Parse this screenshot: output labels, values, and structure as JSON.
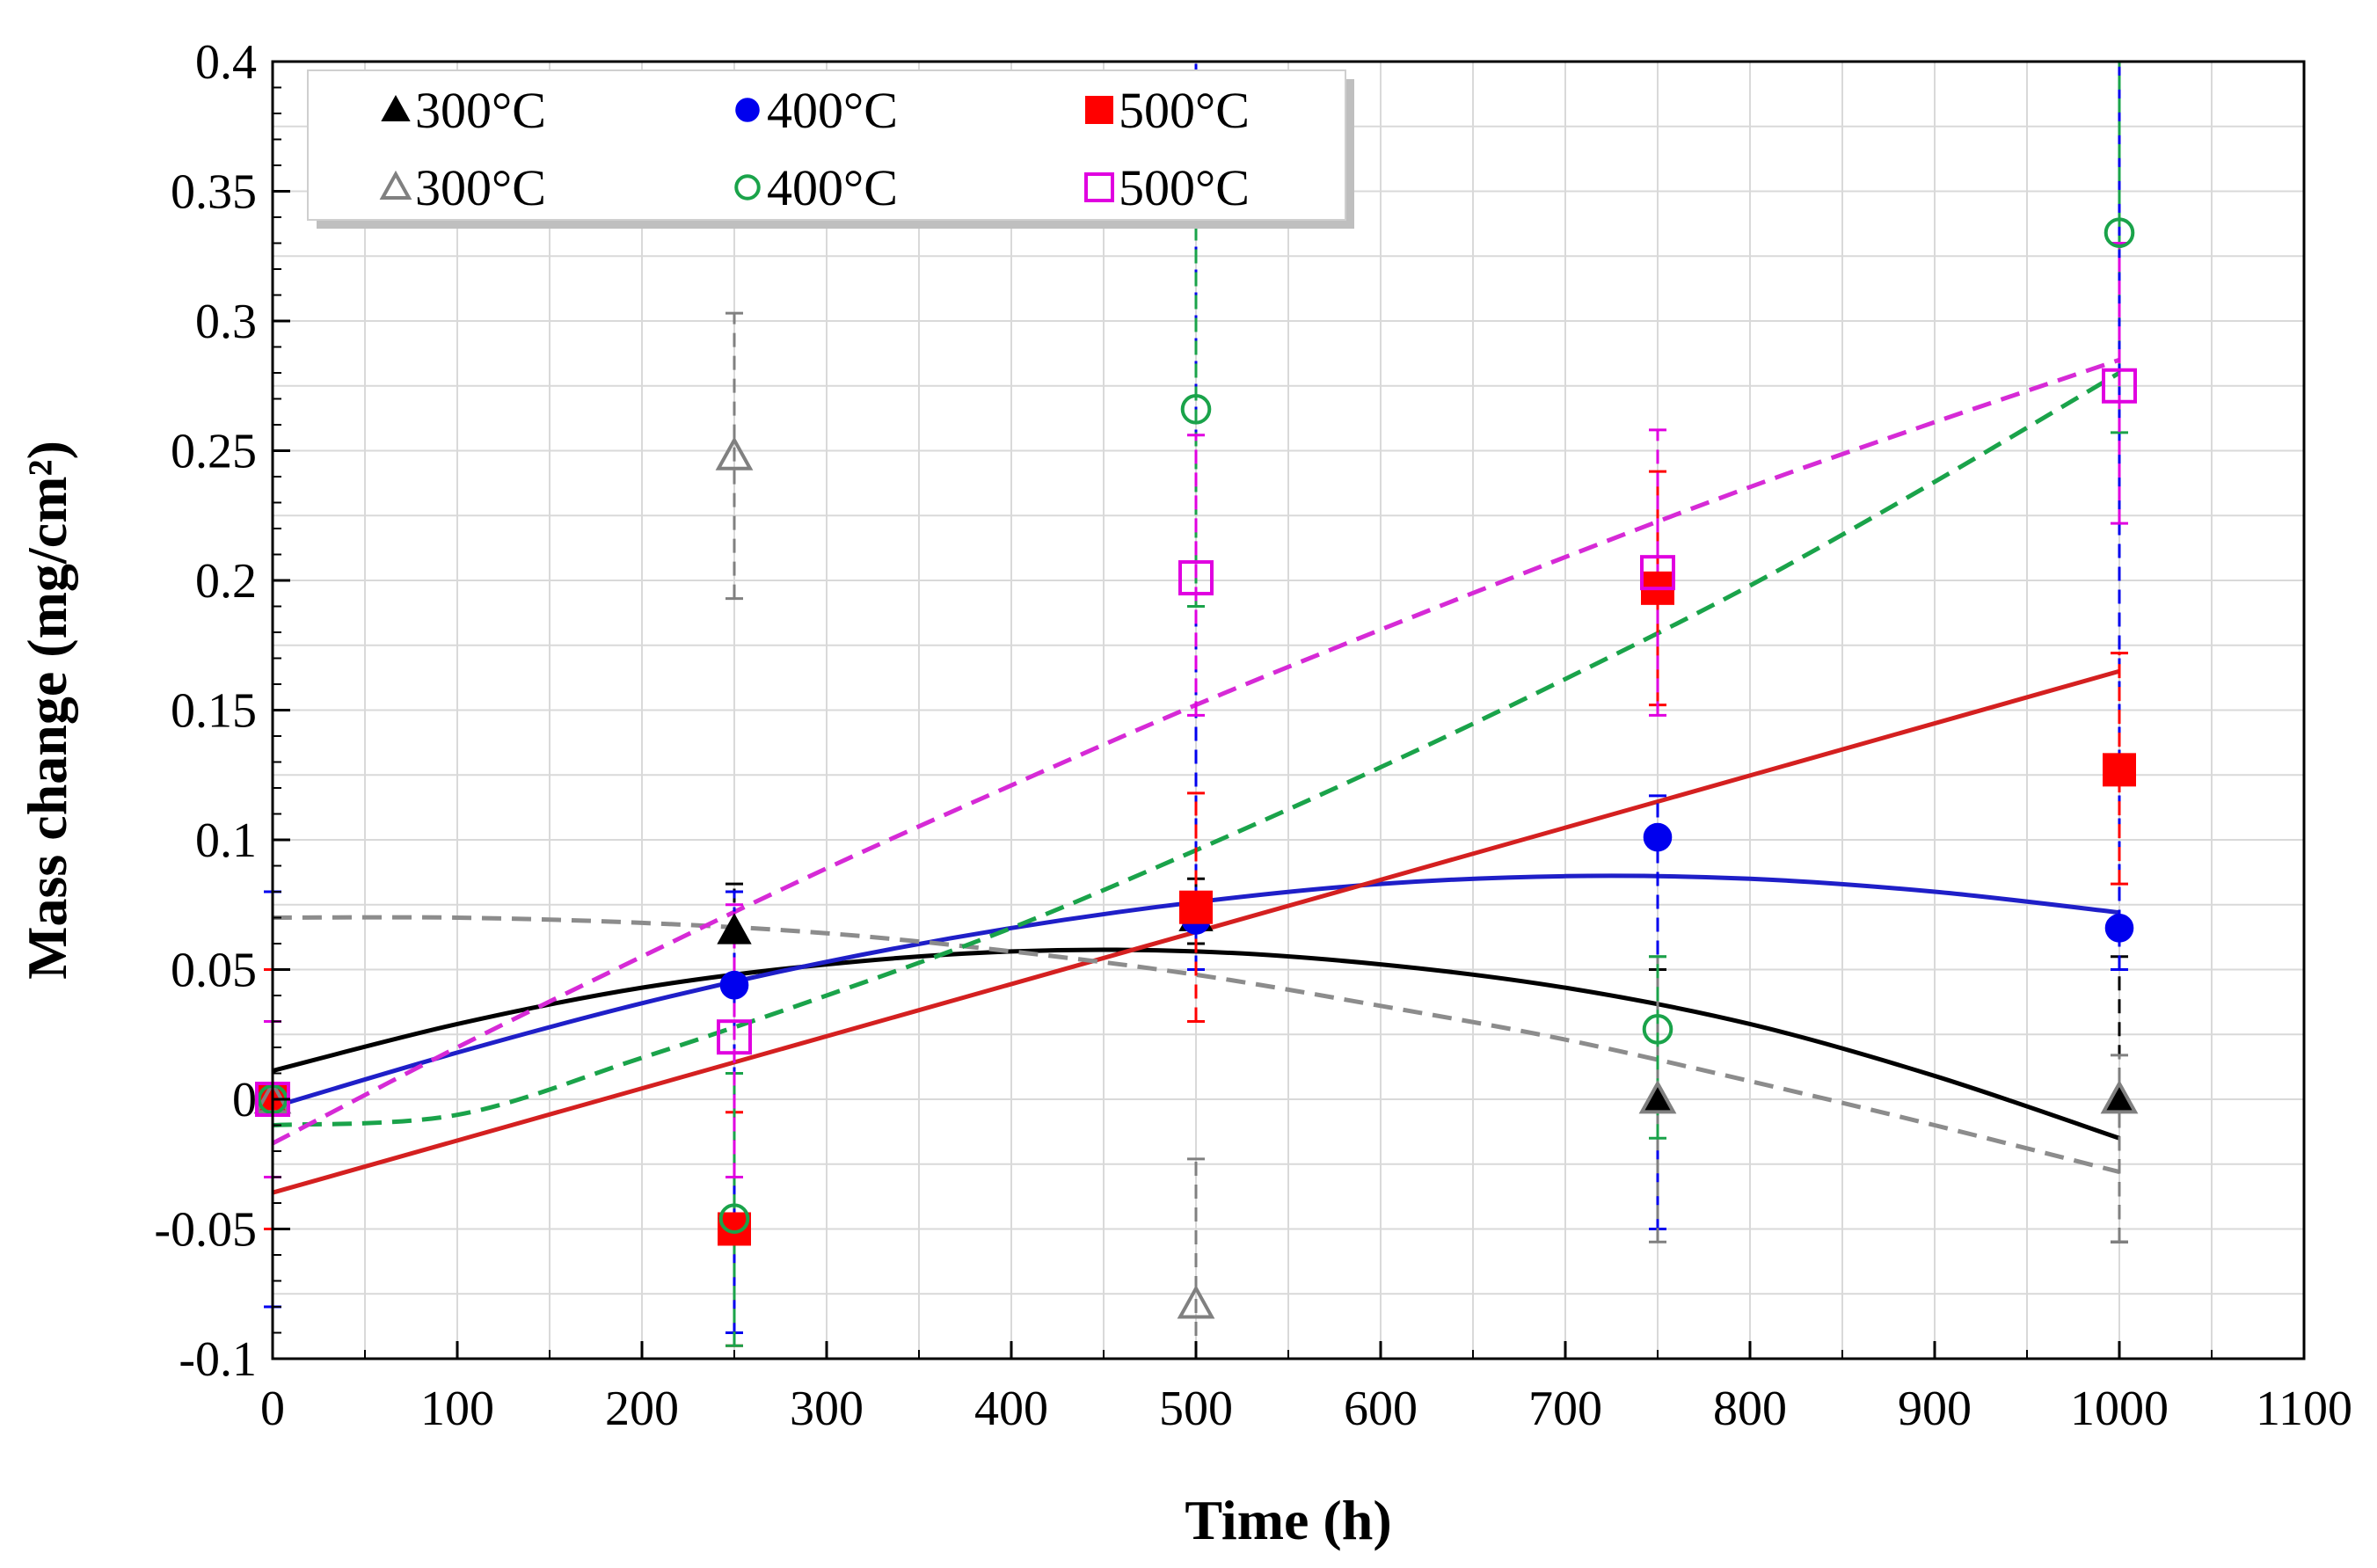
{
  "chart_data": {
    "type": "scatter",
    "title": "",
    "xlabel": "Time (h)",
    "ylabel": "Mass change (mg/cm²)",
    "xlim": [
      0,
      1100
    ],
    "ylim": [
      -0.1,
      0.4
    ],
    "x_ticks": [
      0,
      100,
      200,
      300,
      400,
      500,
      600,
      700,
      800,
      900,
      1000,
      1100
    ],
    "y_ticks": [
      -0.1,
      -0.05,
      0,
      0.05,
      0.1,
      0.15,
      0.2,
      0.25,
      0.3,
      0.35,
      0.4
    ],
    "x_tick_labels": [
      "0",
      "100",
      "200",
      "300",
      "400",
      "500",
      "600",
      "700",
      "800",
      "900",
      "1000",
      "1100"
    ],
    "y_tick_labels": [
      "-0.1",
      "-0.05",
      "0",
      "0.05",
      "0.1",
      "0.15",
      "0.2",
      "0.25",
      "0.3",
      "0.35",
      "0.4"
    ],
    "grid": true,
    "legend_position": "top-left",
    "series": [
      {
        "name": "300°C",
        "marker": "triangle-filled",
        "color": "#000000",
        "points": [
          {
            "x": 0,
            "y": 0,
            "err_low": 0,
            "err_high": 0
          },
          {
            "x": 250,
            "y": 0.065,
            "err_low": -0.03,
            "err_high": 0.083
          },
          {
            "x": 500,
            "y": 0.07,
            "err_low": 0.06,
            "err_high": 0.085
          },
          {
            "x": 750,
            "y": 0,
            "err_low": -0.05,
            "err_high": 0.05
          },
          {
            "x": 1000,
            "y": 0,
            "err_low": -0.055,
            "err_high": 0.055
          }
        ],
        "fit": {
          "style": "solid",
          "color": "#000000",
          "x": [
            0,
            100,
            200,
            300,
            400,
            500,
            600,
            700,
            800,
            900,
            1000
          ],
          "y": [
            0.011,
            0.029,
            0.043,
            0.052,
            0.057,
            0.057,
            0.052,
            0.043,
            0.029,
            0.009,
            -0.015
          ]
        }
      },
      {
        "name": "400°C",
        "marker": "circle-filled",
        "color": "#0000ee",
        "points": [
          {
            "x": 0,
            "y": 0,
            "err_low": -0.08,
            "err_high": 0.08
          },
          {
            "x": 250,
            "y": 0.044,
            "err_low": -0.09,
            "err_high": 0.08
          },
          {
            "x": 500,
            "y": 0.069,
            "err_low": 0.05,
            "err_high": 0.4
          },
          {
            "x": 750,
            "y": 0.101,
            "err_low": -0.05,
            "err_high": 0.117
          },
          {
            "x": 1000,
            "y": 0.066,
            "err_low": 0.05,
            "err_high": 0.4
          }
        ],
        "fit": {
          "style": "solid",
          "color": "#1f1fc8",
          "x": [
            0,
            100,
            200,
            300,
            400,
            500,
            600,
            700,
            800,
            900,
            1000
          ],
          "y": [
            -0.003,
            0.018,
            0.037,
            0.053,
            0.066,
            0.076,
            0.083,
            0.086,
            0.085,
            0.08,
            0.072
          ]
        }
      },
      {
        "name": "500°C",
        "marker": "square-filled",
        "color": "#ff0000",
        "points": [
          {
            "x": 0,
            "y": 0,
            "err_low": -0.05,
            "err_high": 0.05
          },
          {
            "x": 250,
            "y": -0.05,
            "err_low": -0.095,
            "err_high": -0.005
          },
          {
            "x": 500,
            "y": 0.074,
            "err_low": 0.03,
            "err_high": 0.118
          },
          {
            "x": 750,
            "y": 0.197,
            "err_low": 0.152,
            "err_high": 0.242
          },
          {
            "x": 1000,
            "y": 0.127,
            "err_low": 0.083,
            "err_high": 0.172
          }
        ],
        "fit": {
          "style": "solid",
          "color": "#d42020",
          "x": [
            0,
            1000
          ],
          "y": [
            -0.036,
            0.165
          ]
        }
      },
      {
        "name": "300°C",
        "marker": "triangle-open",
        "color": "#808080",
        "points": [
          {
            "x": 0,
            "y": 0,
            "err_low": 0,
            "err_high": 0
          },
          {
            "x": 250,
            "y": 0.248,
            "err_low": 0.193,
            "err_high": 0.303
          },
          {
            "x": 500,
            "y": -0.079,
            "err_low": -0.1,
            "err_high": -0.023
          },
          {
            "x": 750,
            "y": 0,
            "err_low": -0.055,
            "err_high": 0.055
          },
          {
            "x": 1000,
            "y": 0,
            "err_low": -0.055,
            "err_high": 0.017
          }
        ],
        "fit": {
          "style": "dashed",
          "color": "#8c8c8c",
          "x": [
            0,
            100,
            200,
            300,
            400,
            500,
            600,
            700,
            800,
            900,
            1000
          ],
          "y": [
            0.07,
            0.07,
            0.068,
            0.064,
            0.057,
            0.048,
            0.036,
            0.023,
            0.007,
            -0.01,
            -0.028
          ]
        }
      },
      {
        "name": "400°C",
        "marker": "circle-open",
        "color": "#1aa34a",
        "points": [
          {
            "x": 0,
            "y": 0,
            "err_low": -0.03,
            "err_high": 0.03
          },
          {
            "x": 250,
            "y": -0.046,
            "err_low": -0.095,
            "err_high": 0.01
          },
          {
            "x": 500,
            "y": 0.266,
            "err_low": 0.19,
            "err_high": 0.34
          },
          {
            "x": 750,
            "y": 0.027,
            "err_low": -0.015,
            "err_high": 0.055
          },
          {
            "x": 1000,
            "y": 0.334,
            "err_low": 0.257,
            "err_high": 0.4
          }
        ],
        "fit": {
          "style": "dashed",
          "color": "#1aa34a",
          "x": [
            0,
            100,
            200,
            300,
            400,
            500,
            600,
            700,
            800,
            900,
            1000
          ],
          "y": [
            -0.01,
            -0.006,
            0.016,
            0.04,
            0.066,
            0.096,
            0.128,
            0.162,
            0.198,
            0.238,
            0.28
          ]
        }
      },
      {
        "name": "500°C",
        "marker": "square-open",
        "color": "#e000e0",
        "points": [
          {
            "x": 0,
            "y": 0,
            "err_low": -0.03,
            "err_high": 0.03
          },
          {
            "x": 250,
            "y": 0.024,
            "err_low": -0.03,
            "err_high": 0.075
          },
          {
            "x": 500,
            "y": 0.201,
            "err_low": 0.148,
            "err_high": 0.256
          },
          {
            "x": 750,
            "y": 0.203,
            "err_low": 0.148,
            "err_high": 0.258
          },
          {
            "x": 1000,
            "y": 0.275,
            "err_low": 0.222,
            "err_high": 0.33
          }
        ],
        "fit": {
          "style": "dashed",
          "color": "#d62ad6",
          "x": [
            0,
            100,
            200,
            300,
            400,
            500,
            600,
            700,
            800,
            900,
            1000
          ],
          "y": [
            -0.017,
            0.02,
            0.055,
            0.089,
            0.121,
            0.152,
            0.181,
            0.209,
            0.236,
            0.261,
            0.285
          ]
        }
      }
    ]
  }
}
